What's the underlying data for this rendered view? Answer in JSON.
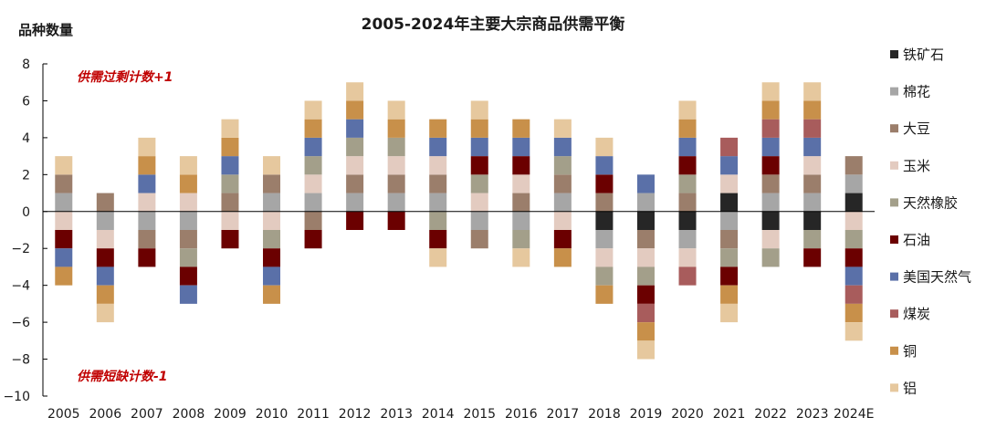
{
  "chart_data": {
    "type": "bar",
    "stacked": true,
    "title": "2005-2024年主要大宗商品供需平衡",
    "ylabel": "品种数量",
    "ylim": [
      -10,
      8
    ],
    "yticks": [
      8,
      6,
      4,
      2,
      0,
      -2,
      -4,
      -6,
      -8,
      -10
    ],
    "grid": false,
    "legend_position": "right",
    "annotations": [
      "供需过剩计数+1",
      "供需短缺计数-1"
    ],
    "categories": [
      "2005",
      "2006",
      "2007",
      "2008",
      "2009",
      "2010",
      "2011",
      "2012",
      "2013",
      "2014",
      "2015",
      "2016",
      "2017",
      "2018",
      "2019",
      "2020",
      "2021",
      "2022",
      "2023",
      "2024E"
    ],
    "series": [
      {
        "name": "铁矿石",
        "color": "#262626",
        "values": [
          0,
          0,
          0,
          0,
          0,
          0,
          0,
          0,
          0,
          0,
          0,
          0,
          0,
          -1,
          -1,
          -1,
          1,
          -1,
          -1,
          1
        ]
      },
      {
        "name": "棉花",
        "color": "#a6a6a6",
        "values": [
          1,
          -1,
          -1,
          -1,
          0,
          1,
          1,
          1,
          1,
          1,
          -1,
          -1,
          1,
          -1,
          1,
          -1,
          -1,
          1,
          1,
          1
        ]
      },
      {
        "name": "大豆",
        "color": "#9b7e6b",
        "values": [
          1,
          1,
          -1,
          -1,
          1,
          1,
          -1,
          1,
          1,
          1,
          -1,
          1,
          1,
          1,
          -1,
          1,
          -1,
          1,
          1,
          1
        ]
      },
      {
        "name": "玉米",
        "color": "#e3cbc0",
        "values": [
          -1,
          -1,
          1,
          1,
          -1,
          -1,
          1,
          1,
          1,
          1,
          1,
          1,
          -1,
          -1,
          -1,
          -1,
          1,
          -1,
          1,
          -1
        ]
      },
      {
        "name": "天然橡胶",
        "color": "#a39f8a",
        "values": [
          0,
          0,
          0,
          -1,
          1,
          -1,
          1,
          1,
          1,
          -1,
          1,
          -1,
          1,
          -1,
          -1,
          1,
          -1,
          -1,
          -1,
          -1
        ]
      },
      {
        "name": "石油",
        "color": "#6b0000",
        "values": [
          -1,
          -1,
          -1,
          -1,
          -1,
          -1,
          -1,
          -1,
          -1,
          -1,
          1,
          1,
          -1,
          1,
          -1,
          1,
          -1,
          1,
          -1,
          -1
        ]
      },
      {
        "name": "美国天然气",
        "color": "#5a70a8",
        "values": [
          -1,
          -1,
          1,
          -1,
          1,
          -1,
          1,
          1,
          0,
          1,
          1,
          1,
          1,
          1,
          1,
          1,
          1,
          1,
          1,
          -1
        ]
      },
      {
        "name": "煤炭",
        "color": "#a85c5c",
        "values": [
          0,
          0,
          0,
          0,
          0,
          0,
          0,
          0,
          0,
          0,
          0,
          0,
          0,
          0,
          -1,
          -1,
          1,
          1,
          1,
          -1
        ]
      },
      {
        "name": "铜",
        "color": "#c8904a",
        "values": [
          -1,
          -1,
          1,
          1,
          1,
          -1,
          1,
          1,
          1,
          1,
          1,
          1,
          -1,
          -1,
          -1,
          1,
          -1,
          1,
          1,
          -1
        ]
      },
      {
        "name": "铝",
        "color": "#e6c89e",
        "values": [
          1,
          -1,
          1,
          1,
          1,
          1,
          1,
          1,
          1,
          -1,
          1,
          -1,
          1,
          1,
          -1,
          1,
          -1,
          1,
          1,
          -1
        ]
      }
    ]
  }
}
